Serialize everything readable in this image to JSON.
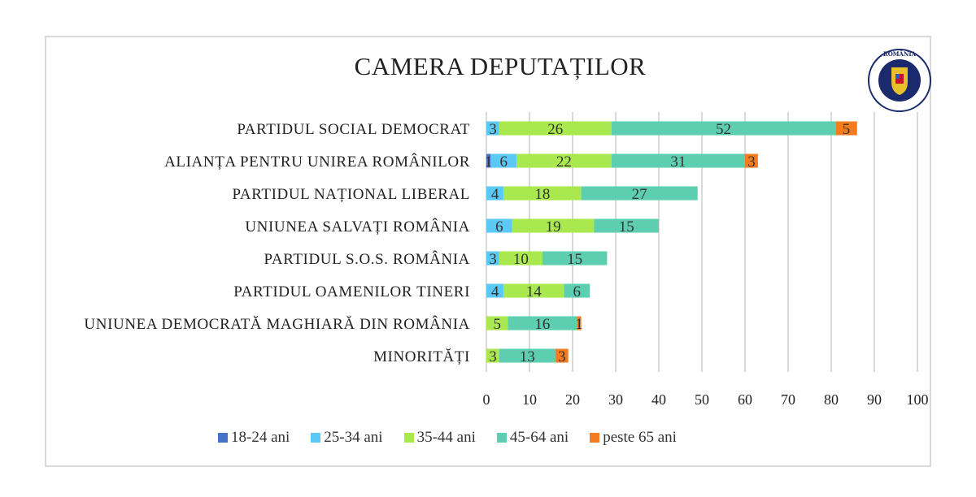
{
  "chart_data": {
    "type": "bar",
    "orientation": "horizontal",
    "stacked": true,
    "title": "CAMERA DEPUTAȚILOR",
    "categories": [
      "PARTIDUL SOCIAL DEMOCRAT",
      "ALIANȚA PENTRU UNIREA ROMÂNILOR",
      "PARTIDUL NAȚIONAL LIBERAL",
      "UNIUNEA SALVAȚI ROMÂNIA",
      "PARTIDUL S.O.S. ROMÂNIA",
      "PARTIDUL OAMENILOR TINERI",
      "UNIUNEA DEMOCRATĂ MAGHIARĂ DIN ROMÂNIA",
      "MINORITĂȚI"
    ],
    "series": [
      {
        "name": "18-24 ani",
        "color": "#4472C4",
        "values": [
          0,
          1,
          0,
          0,
          0,
          0,
          0,
          0
        ]
      },
      {
        "name": "25-34 ani",
        "color": "#5BC8F5",
        "values": [
          3,
          6,
          4,
          6,
          3,
          4,
          0,
          0
        ]
      },
      {
        "name": "35-44 ani",
        "color": "#A9E84F",
        "values": [
          26,
          22,
          18,
          19,
          10,
          14,
          5,
          3
        ]
      },
      {
        "name": "45-64 ani",
        "color": "#5ECEB0",
        "values": [
          52,
          31,
          27,
          15,
          15,
          6,
          16,
          13
        ]
      },
      {
        "name": "peste 65 ani",
        "color": "#F47B20",
        "values": [
          5,
          3,
          0,
          0,
          0,
          0,
          1,
          3
        ]
      }
    ],
    "xlim": [
      0,
      100
    ],
    "xticks": [
      0,
      10,
      20,
      30,
      40,
      50,
      60,
      70,
      80,
      90,
      100
    ],
    "grid": true,
    "legend": "bottom"
  },
  "logo": {
    "text_top": "ROMÂNIA",
    "text_ring": "AUTORITATEA ELECTORALĂ PERMANENTĂ"
  }
}
